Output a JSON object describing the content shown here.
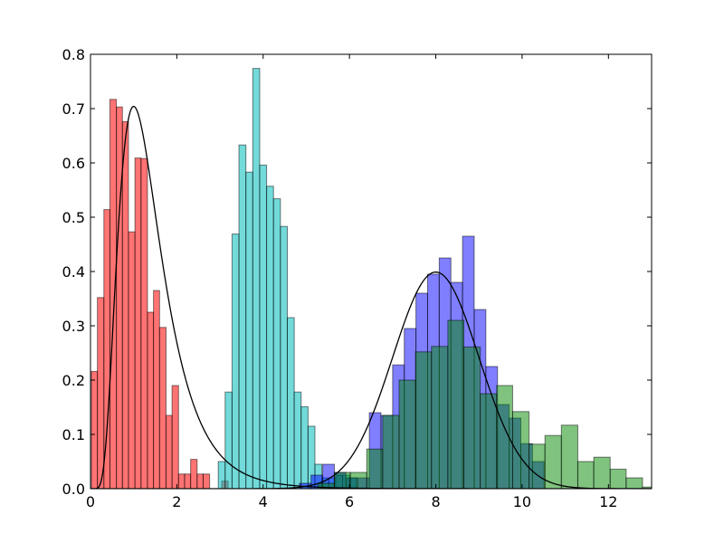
{
  "chart_data": {
    "type": "bar",
    "title": "",
    "xlabel": "",
    "ylabel": "",
    "xlim": [
      0,
      13
    ],
    "ylim": [
      0,
      0.8
    ],
    "grid": false,
    "xticks": [
      0,
      2,
      4,
      6,
      8,
      10,
      12
    ],
    "yticks": [
      0.0,
      0.1,
      0.2,
      0.3,
      0.4,
      0.5,
      0.6,
      0.7,
      0.8
    ],
    "xtick_labels": [
      "0",
      "2",
      "4",
      "6",
      "8",
      "10",
      "12"
    ],
    "ytick_labels": [
      "0.0",
      "0.1",
      "0.2",
      "0.3",
      "0.4",
      "0.5",
      "0.6",
      "0.7",
      "0.8"
    ],
    "series": [
      {
        "kind": "histogram",
        "color": "#ff0000",
        "opacity": 0.55,
        "bins": [
          0.02,
          0.16,
          0.31,
          0.45,
          0.6,
          0.74,
          0.88,
          1.03,
          1.17,
          1.32,
          1.46,
          1.6,
          1.75,
          1.89,
          2.04,
          2.18,
          2.32,
          2.47,
          2.61,
          2.76,
          2.9,
          3.04,
          3.19
        ],
        "values": [
          0.216,
          0.352,
          0.514,
          0.717,
          0.703,
          0.676,
          0.473,
          0.609,
          0.608,
          0.325,
          0.365,
          0.297,
          0.135,
          0.19,
          0.027,
          0.027,
          0.054,
          0.027,
          0.027,
          0,
          0,
          0.014
        ]
      },
      {
        "kind": "histogram",
        "color": "#00bbbb",
        "opacity": 0.55,
        "bins": [
          2.96,
          3.12,
          3.28,
          3.44,
          3.6,
          3.76,
          3.92,
          4.08,
          4.24,
          4.4,
          4.56,
          4.72,
          4.88,
          5.04,
          5.2,
          5.36,
          5.52,
          5.68,
          5.84,
          6.0,
          6.16
        ],
        "values": [
          0.05,
          0.178,
          0.469,
          0.633,
          0.583,
          0.774,
          0.596,
          0.557,
          0.534,
          0.483,
          0.315,
          0.178,
          0.151,
          0.115,
          0.045,
          0.02,
          0.02,
          0.025,
          0.025,
          0.02
        ]
      },
      {
        "kind": "histogram",
        "color": "#0000ff",
        "opacity": 0.5,
        "bins": [
          4.84,
          5.11,
          5.38,
          5.65,
          5.92,
          6.19,
          6.46,
          6.73,
          7.0,
          7.27,
          7.54,
          7.81,
          8.08,
          8.35,
          8.62,
          8.89,
          9.16,
          9.43,
          9.7,
          9.97,
          10.24,
          10.51
        ],
        "values": [
          0.01,
          0.025,
          0.045,
          0.03,
          0.02,
          0.02,
          0.14,
          0.135,
          0.228,
          0.295,
          0.36,
          0.395,
          0.425,
          0.38,
          0.465,
          0.33,
          0.225,
          0.155,
          0.13,
          0.083,
          0.05
        ]
      },
      {
        "kind": "histogram",
        "color": "#008800",
        "opacity": 0.5,
        "bins": [
          5.27,
          5.65,
          6.02,
          6.4,
          6.77,
          7.15,
          7.53,
          7.9,
          8.28,
          8.65,
          9.03,
          9.41,
          9.78,
          10.16,
          10.53,
          10.91,
          11.29,
          11.66,
          12.04,
          12.41,
          12.79,
          13.16
        ],
        "values": [
          0.01,
          0.03,
          0.03,
          0.073,
          0.135,
          0.2,
          0.252,
          0.262,
          0.31,
          0.261,
          0.175,
          0.19,
          0.142,
          0.082,
          0.098,
          0.117,
          0.05,
          0.058,
          0.036,
          0.02,
          0.003
        ]
      },
      {
        "kind": "curve",
        "color": "#000000",
        "distribution": "lognormal",
        "sigma": 0.5,
        "mu": 0.25
      },
      {
        "kind": "curve",
        "color": "#000000",
        "distribution": "normal",
        "mean": 8,
        "std": 1
      }
    ]
  }
}
